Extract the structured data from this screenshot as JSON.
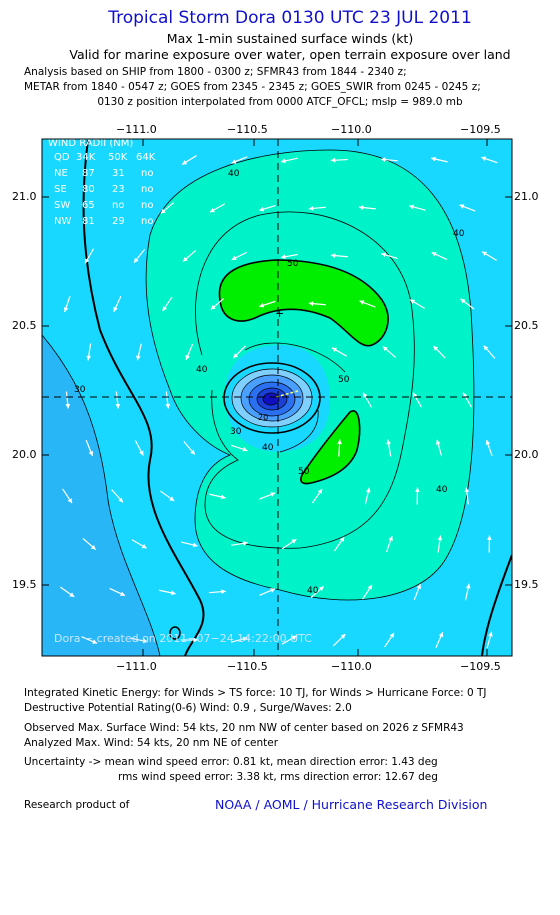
{
  "header": {
    "title": "Tropical Storm Dora 0130 UTC 23 JUL 2011",
    "subtitle1": "Max 1-min sustained surface winds (kt)",
    "subtitle2": "Valid for marine exposure over water, open terrain exposure over land",
    "info1": "Analysis based on SHIP from 1800 - 0300 z; SFMR43 from 1844 - 2340 z;",
    "info2": "METAR from 1840 - 0547 z; GOES from 2345 - 2345 z; GOES_SWIR from 0245 - 0245 z;",
    "info3": "0130 z position interpolated from 0000 ATCF_OFCL; mslp = 989.0 mb"
  },
  "map": {
    "lon_ticks": [
      "−111.0",
      "−110.5",
      "−110.0",
      "−109.5"
    ],
    "lat_ticks": [
      "21.0",
      "20.5",
      "20.0",
      "19.5"
    ],
    "contour_labels": [
      "40",
      "40",
      "40",
      "40",
      "50",
      "50",
      "50",
      "30",
      "30",
      "40",
      "20"
    ],
    "credit": "Dora − created on 2011−07−24 14:22:00 UTC",
    "colors": {
      "c20": "#29b6f6",
      "c30": "#19d8ff",
      "c40": "#00f2c8",
      "c50": "#00ee00",
      "core": [
        "#80d0ff",
        "#4aa0ff",
        "#2a70f0",
        "#1a40d8",
        "#1010c0"
      ]
    }
  },
  "wind_radii": {
    "title": "WIND RADII (NM)",
    "header": [
      "QD",
      "34K",
      "50K",
      "64K"
    ],
    "rows": [
      [
        "NE",
        "87",
        "31",
        "no"
      ],
      [
        "SE",
        "80",
        "23",
        "no"
      ],
      [
        "SW",
        "65",
        "no",
        "no"
      ],
      [
        "NW",
        "81",
        "29",
        "no"
      ]
    ]
  },
  "footer": {
    "ike": "Integrated Kinetic Energy:  for Winds > TS force: 10 TJ,  for Winds > Hurricane Force: 0 TJ",
    "dpr": "Destructive Potential Rating(0-6)   Wind: 0.9 , Surge/Waves: 2.0",
    "obs": "Observed Max. Surface Wind: 54 kts, 20 nm NW of center based on 2026 z SFMR43",
    "ana": "Analyzed Max. Wind: 54 kts, 20 nm NE of center",
    "unc1": "Uncertainty -> mean wind speed error: 0.81 kt,   mean direction error: 1.43 deg",
    "unc2": "rms wind speed error: 3.38 kt,   rms direction error: 12.67 deg",
    "research": "Research product of",
    "org": "NOAA / AOML / Hurricane Research Division"
  }
}
